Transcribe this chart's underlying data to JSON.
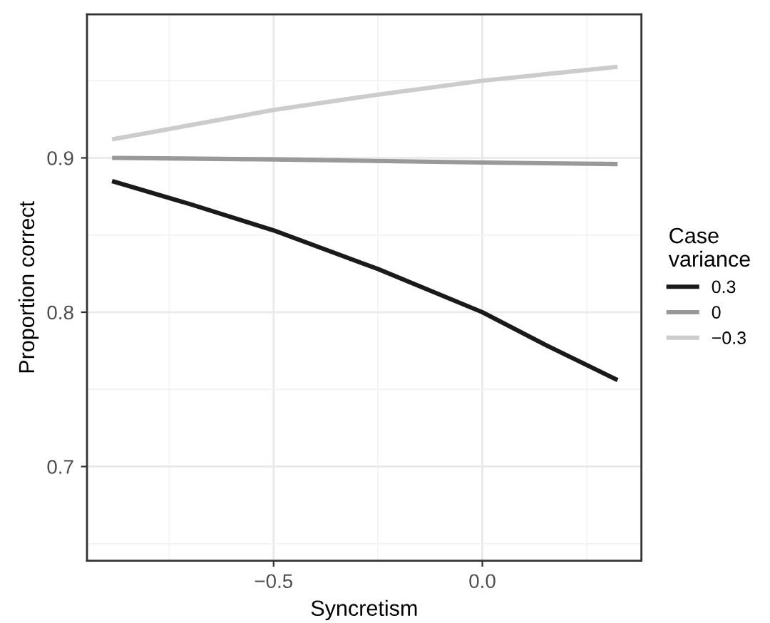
{
  "chart_data": {
    "type": "line",
    "xlabel": "Syncretism",
    "ylabel": "Proportion correct",
    "legend_title": "Case\nvariance",
    "legend": "right",
    "xlim": [
      -0.947,
      0.381
    ],
    "ylim": [
      0.639,
      0.993
    ],
    "xticks": [
      {
        "value": -0.5,
        "label": "−0.5"
      },
      {
        "value": 0.0,
        "label": "0.0"
      }
    ],
    "yticks": [
      0.7,
      0.8,
      0.9
    ],
    "grid": true,
    "line_style": "solid",
    "marker": "none",
    "series": [
      {
        "name": "0.3",
        "color": "#1a1a1a",
        "x": [
          -0.887,
          -0.7,
          -0.5,
          -0.25,
          0.0,
          0.15,
          0.324
        ],
        "values": [
          0.885,
          0.87,
          0.853,
          0.828,
          0.8,
          0.779,
          0.756
        ]
      },
      {
        "name": "0",
        "color": "#999999",
        "x": [
          -0.887,
          -0.5,
          0.0,
          0.324
        ],
        "values": [
          0.9,
          0.899,
          0.897,
          0.896
        ]
      },
      {
        "name": "−0.3",
        "color": "#cccccc",
        "x": [
          -0.887,
          -0.5,
          -0.25,
          0.0,
          0.324
        ],
        "values": [
          0.912,
          0.931,
          0.941,
          0.95,
          0.959
        ]
      }
    ]
  }
}
